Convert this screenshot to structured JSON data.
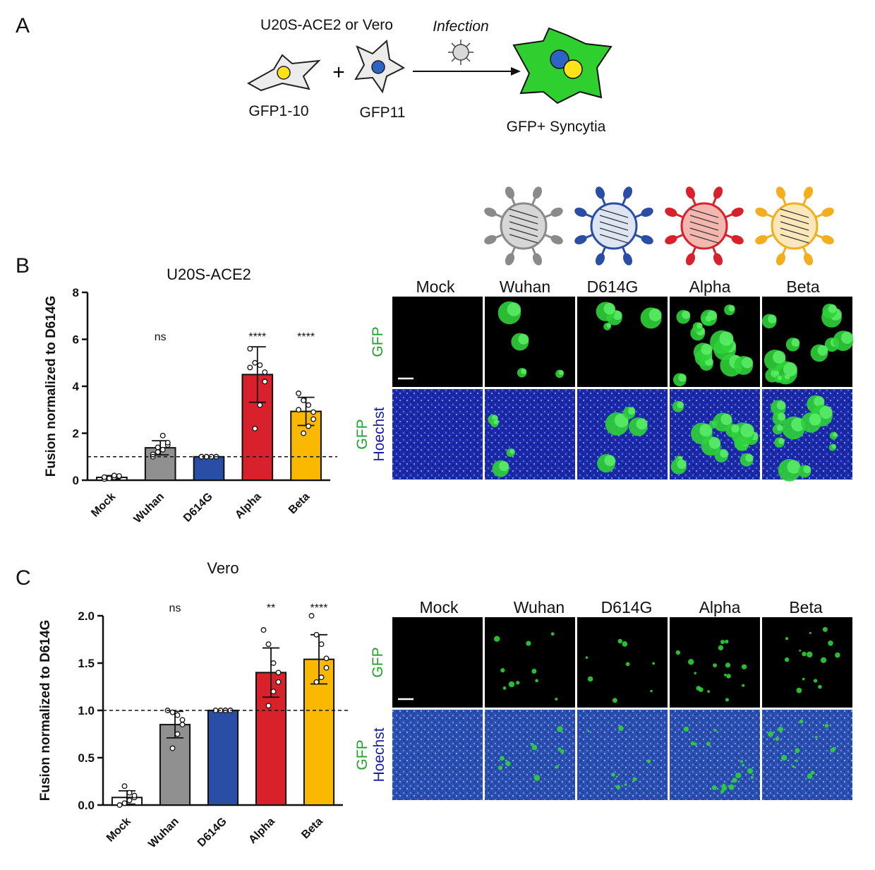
{
  "panels": {
    "a": {
      "letter": "A",
      "cell_line_label": "U20S-ACE2 or Vero",
      "plus": "+",
      "infection_label": "Infection",
      "cell1_label": "GFP1-10",
      "cell2_label": "GFP11",
      "result_label": "GFP+ Syncytia"
    },
    "b": {
      "letter": "B"
    },
    "c": {
      "letter": "C"
    }
  },
  "variant_colors": {
    "Mock": "#ffffff",
    "Wuhan": "#909090",
    "D614G": "#2a4ea5",
    "Alpha": "#d8212b",
    "Beta": "#fbb800"
  },
  "virus_icons": [
    {
      "variant": "Wuhan",
      "color": "#8a8a8a",
      "fill": "#d6d6d6"
    },
    {
      "variant": "D614G",
      "color": "#2a4ea5",
      "fill": "#dde4f2"
    },
    {
      "variant": "Alpha",
      "color": "#d8212b",
      "fill": "#f4b7b0"
    },
    {
      "variant": "Beta",
      "color": "#f2ae1c",
      "fill": "#fbe7b9"
    }
  ],
  "microscopy": {
    "b": {
      "columns": [
        "Mock",
        "Wuhan",
        "D614G",
        "Alpha",
        "Beta"
      ],
      "row_labels": [
        {
          "line1": "GFP"
        },
        {
          "line1": "GFP",
          "line2": "Hoechst"
        }
      ],
      "scale_bar": true
    },
    "c": {
      "columns": [
        "Mock",
        "Wuhan",
        "D614G",
        "Alpha",
        "Beta"
      ],
      "row_labels": [
        {
          "line1": "GFP"
        },
        {
          "line1": "GFP",
          "line2": "Hoechst"
        }
      ],
      "scale_bar": true
    }
  },
  "chart_data": [
    {
      "type": "bar",
      "title": "U20S-ACE2",
      "ylabel": "Fusion normalized to D614G",
      "xlabel": "",
      "categories": [
        "Mock",
        "Wuhan",
        "D614G",
        "Alpha",
        "Beta"
      ],
      "values": [
        0.12,
        1.38,
        1.0,
        4.5,
        2.93
      ],
      "error_sd": [
        0.08,
        0.3,
        0.0,
        1.18,
        0.6
      ],
      "points": [
        [
          0.05,
          0.1,
          0.12,
          0.15,
          0.18,
          0.2,
          0.08,
          0.13
        ],
        [
          1.1,
          1.2,
          1.3,
          1.5,
          1.6,
          1.9,
          1.4,
          1.0
        ],
        [
          1.0,
          1.0,
          1.0,
          1.0,
          1.0,
          1.0,
          1.0,
          1.0
        ],
        [
          5.6,
          5.0,
          4.9,
          4.6,
          4.2,
          3.2,
          2.2,
          4.8
        ],
        [
          3.7,
          3.4,
          3.2,
          2.9,
          2.6,
          2.3,
          2.0,
          3.0
        ]
      ],
      "significance": [
        "",
        "ns",
        "",
        "****",
        "****"
      ],
      "ylim": [
        0,
        8
      ],
      "yticks": [
        0,
        2,
        4,
        6,
        8
      ],
      "reference_line": 1.0,
      "colors": [
        "#ffffff",
        "#909090",
        "#2a4ea5",
        "#d8212b",
        "#fbb800"
      ]
    },
    {
      "type": "bar",
      "title": "Vero",
      "ylabel": "Fusion normalized  to D614G",
      "xlabel": "",
      "categories": [
        "Mock",
        "Wuhan",
        "D614G",
        "Alpha",
        "Beta"
      ],
      "values": [
        0.08,
        0.85,
        1.0,
        1.4,
        1.54
      ],
      "error_sd": [
        0.07,
        0.14,
        0.0,
        0.26,
        0.26
      ],
      "points": [
        [
          0.0,
          0.02,
          0.05,
          0.08,
          0.1,
          0.13,
          0.2
        ],
        [
          1.0,
          0.98,
          0.95,
          0.9,
          0.85,
          0.75,
          0.6
        ],
        [
          1.0,
          1.0,
          1.0,
          1.0,
          1.0,
          1.0,
          1.0
        ],
        [
          1.85,
          1.7,
          1.5,
          1.4,
          1.3,
          1.2,
          1.05
        ],
        [
          2.0,
          1.8,
          1.7,
          1.55,
          1.45,
          1.35,
          1.3
        ]
      ],
      "significance": [
        "",
        "ns",
        "",
        "**",
        "****"
      ],
      "ylim": [
        0,
        2.0
      ],
      "yticks": [
        "0.0",
        "0.5",
        "1.0",
        "1.5",
        "2.0"
      ],
      "reference_line": 1.0,
      "colors": [
        "#ffffff",
        "#909090",
        "#2a4ea5",
        "#d8212b",
        "#fbb800"
      ]
    }
  ]
}
